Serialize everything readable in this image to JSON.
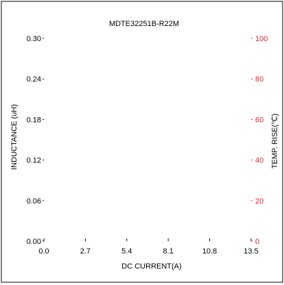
{
  "chart_data": {
    "type": "line",
    "title": "MDTE32251B-R22M",
    "xlabel": "DC CURRENT(A)",
    "ylabel_left": "INDUCTANCE (uH)",
    "ylabel_right": "TEMP. RISE(℃)",
    "x_ticks": [
      "0.0",
      "2.7",
      "5.4",
      "8.1",
      "10.8",
      "13.5"
    ],
    "x_values": [
      0.0,
      2.7,
      5.4,
      8.1,
      10.8,
      13.5
    ],
    "y_left_ticks": [
      "0.00",
      "0.06",
      "0.12",
      "0.18",
      "0.24",
      "0.30"
    ],
    "y_left_values": [
      0.0,
      0.06,
      0.12,
      0.18,
      0.24,
      0.3
    ],
    "y_right_ticks": [
      "0",
      "20",
      "40",
      "60",
      "80",
      "100"
    ],
    "y_right_values": [
      0,
      20,
      40,
      60,
      80,
      100
    ],
    "xlim": [
      0,
      13.5
    ],
    "ylim_left": [
      0,
      0.3
    ],
    "ylim_right": [
      0,
      100
    ],
    "grid": false,
    "series": [],
    "colors": {
      "left_axis": "#000000",
      "right_axis": "#e8242c",
      "frame": "#000000",
      "background": "#ffffff"
    }
  }
}
